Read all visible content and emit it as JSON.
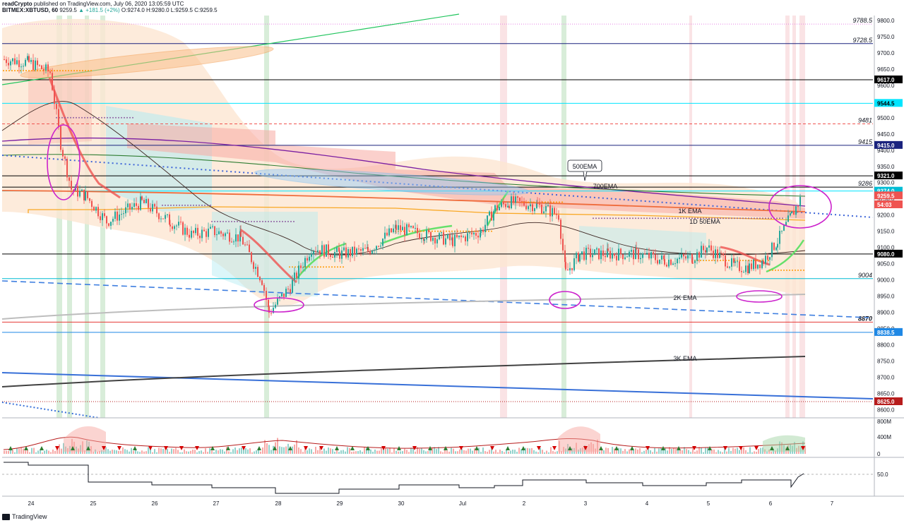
{
  "header": {
    "publisher": "readCrypto",
    "published_text": "published on TradingView.com, July 06, 2020 13:05:59 UTC",
    "symbol": "BITMEX:XBTUSD, 60",
    "last": "9259.5",
    "change": "▲ +181.5 (+2%)",
    "ohlc": "O:9274.0 H:9280.0 L:9259.5 C:9259.5"
  },
  "footer": {
    "brand": "TradingView"
  },
  "chart_data": {
    "type": "line",
    "x_tick_labels": [
      "24",
      "25",
      "26",
      "27",
      "28",
      "29",
      "30",
      "Jul",
      "2",
      "3",
      "4",
      "5",
      "6",
      "7"
    ],
    "ylim": [
      8575,
      9815
    ],
    "y_ticks": [
      9800,
      9750,
      9700,
      9650,
      9600,
      9550,
      9500,
      9450,
      9400,
      9350,
      9300,
      9250,
      9200,
      9150,
      9100,
      9050,
      9000,
      8950,
      8900,
      8850,
      8800,
      8750,
      8700,
      8650,
      8600
    ],
    "price_tags": [
      {
        "label": "9321.0",
        "value": 9321,
        "bg": "#000000",
        "fg": "#ffffff"
      },
      {
        "label": "9274.0",
        "value": 9274,
        "bg": "#00bcd4",
        "fg": "#ffffff"
      },
      {
        "label": "9259.5",
        "value": 9259.5,
        "bg": "#ef5350",
        "fg": "#ffffff"
      },
      {
        "label": "54:03",
        "value": 9232,
        "bg": "#ef5350",
        "fg": "#ffffff"
      },
      {
        "label": "9617.0",
        "value": 9617,
        "bg": "#000000",
        "fg": "#ffffff"
      },
      {
        "label": "9544.5",
        "value": 9544.5,
        "bg": "#00e5ff",
        "fg": "#000000"
      },
      {
        "label": "9415.0",
        "value": 9415,
        "bg": "#1a237e",
        "fg": "#ffffff"
      },
      {
        "label": "9080.0",
        "value": 9080,
        "bg": "#000000",
        "fg": "#ffffff"
      },
      {
        "label": "8838.5",
        "value": 8838.5,
        "bg": "#1e88e5",
        "fg": "#ffffff"
      },
      {
        "label": "8625.0",
        "value": 8625,
        "bg": "#b71c1c",
        "fg": "#ffffff"
      }
    ],
    "levels": [
      {
        "label": "9788.5",
        "value": 9788.5,
        "color": "#e57fe5",
        "style": "dotted"
      },
      {
        "label": "9728.5",
        "value": 9728.5,
        "color": "#1a237e",
        "style": "solid"
      },
      {
        "label": "",
        "value": 9617,
        "color": "#000000",
        "style": "solid"
      },
      {
        "label": "",
        "value": 9544.5,
        "color": "#00e5ff",
        "style": "solid"
      },
      {
        "label": "9481",
        "value": 9481,
        "color": "#ef5350",
        "style": "dashed"
      },
      {
        "label": "9415",
        "value": 9415,
        "color": "#1a237e",
        "style": "solid"
      },
      {
        "label": "",
        "value": 9321,
        "color": "#000000",
        "style": "solid"
      },
      {
        "label": "9286",
        "value": 9286,
        "color": "#000000",
        "style": "solid"
      },
      {
        "label": "",
        "value": 9274,
        "color": "#00e5ff",
        "style": "solid"
      },
      {
        "label": "",
        "value": 9080,
        "color": "#000000",
        "style": "solid"
      },
      {
        "label": "9004",
        "value": 9004,
        "color": "#00bcd4",
        "style": "solid"
      },
      {
        "label": "8870",
        "value": 8870,
        "color": "#e53935",
        "style": "solid"
      },
      {
        "label": "",
        "value": 8838.5,
        "color": "#1e88e5",
        "style": "solid"
      },
      {
        "label": "",
        "value": 8625,
        "color": "#b71c1c",
        "style": "dotted"
      }
    ],
    "annotations": [
      {
        "text": "500EMA",
        "x": 828,
        "y": 236,
        "boxed": true
      },
      {
        "text": "700EMA",
        "x": 857,
        "y": 264
      },
      {
        "text": "1K EMA",
        "x": 977,
        "y": 299
      },
      {
        "text": "1D 50EMA",
        "x": 998,
        "y": 314
      },
      {
        "text": "2K EMA",
        "x": 970,
        "y": 422
      },
      {
        "text": "3K EMA",
        "x": 970,
        "y": 508
      }
    ],
    "volume_axis": [
      "800M",
      "400M",
      "0"
    ],
    "indicator_axis": [
      "50.0"
    ]
  }
}
